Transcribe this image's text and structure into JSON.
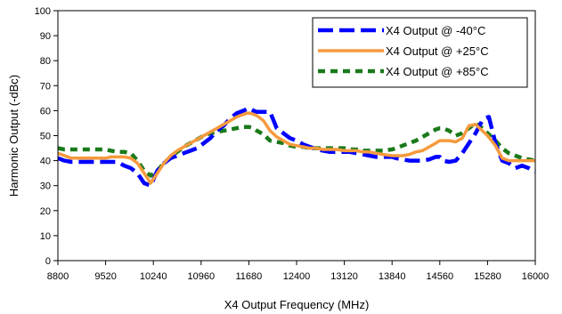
{
  "chart_data": {
    "type": "line",
    "xlabel": "X4 Output Frequency (MHz)",
    "ylabel": "Harmonic Output (-dBc)",
    "xlim": [
      8800,
      16000
    ],
    "ylim": [
      0,
      100
    ],
    "xticks": [
      8800,
      9520,
      10240,
      10960,
      11680,
      12400,
      13120,
      13840,
      14560,
      15280,
      16000
    ],
    "yticks": [
      0,
      10,
      20,
      30,
      40,
      50,
      60,
      70,
      80,
      90,
      100
    ],
    "grid": false,
    "legend_position": "top-right",
    "series": [
      {
        "name": "X4 Output @ -40°C",
        "color": "#0000ff",
        "dash": "long-dash",
        "x": [
          8800,
          8900,
          9000,
          9100,
          9200,
          9300,
          9400,
          9520,
          9600,
          9700,
          9800,
          9900,
          10000,
          10100,
          10200,
          10300,
          10400,
          10500,
          10600,
          10700,
          10800,
          10900,
          11000,
          11100,
          11200,
          11300,
          11400,
          11500,
          11600,
          11680,
          11750,
          11800,
          11900,
          12000,
          12100,
          12200,
          12300,
          12400,
          12500,
          12600,
          12700,
          12800,
          12900,
          13000,
          13120,
          13200,
          13300,
          13400,
          13500,
          13600,
          13700,
          13840,
          13900,
          14000,
          14100,
          14200,
          14300,
          14400,
          14500,
          14560,
          14600,
          14700,
          14800,
          14900,
          15000,
          15100,
          15200,
          15250,
          15300,
          15400,
          15500,
          15600,
          15700,
          15800,
          15900,
          16000
        ],
        "values": [
          41,
          40,
          39.5,
          39.5,
          39.5,
          39.5,
          39.5,
          39.5,
          39.5,
          39.5,
          38,
          37,
          35,
          31,
          30,
          36,
          39,
          41,
          42,
          43,
          44,
          45,
          47,
          49,
          52,
          54,
          57,
          59,
          60,
          61,
          60,
          59.5,
          59.5,
          59.5,
          53,
          51,
          49,
          48,
          46.5,
          45.5,
          44.5,
          44,
          43.5,
          43.5,
          43.5,
          43.5,
          43,
          42.5,
          42,
          41.5,
          41.5,
          41.5,
          41,
          40.5,
          40,
          40,
          40,
          40.5,
          41.5,
          41.5,
          40,
          39.5,
          40,
          43,
          47,
          51,
          56,
          57,
          57.5,
          47,
          40,
          39,
          37,
          38,
          37,
          35.5
        ]
      },
      {
        "name": "X4 Output @ +25°C",
        "color": "#f59a3e",
        "dash": "solid",
        "x": [
          8800,
          8900,
          9000,
          9100,
          9200,
          9300,
          9400,
          9520,
          9600,
          9700,
          9800,
          9900,
          10000,
          10100,
          10200,
          10300,
          10400,
          10500,
          10600,
          10700,
          10800,
          10900,
          11000,
          11100,
          11200,
          11300,
          11400,
          11500,
          11600,
          11650,
          11700,
          11800,
          11900,
          12000,
          12100,
          12200,
          12300,
          12400,
          12500,
          12600,
          12700,
          12800,
          12900,
          13000,
          13120,
          13200,
          13300,
          13400,
          13500,
          13600,
          13700,
          13840,
          13900,
          14000,
          14100,
          14200,
          14300,
          14400,
          14500,
          14560,
          14600,
          14700,
          14800,
          14900,
          15000,
          15100,
          15200,
          15280,
          15400,
          15500,
          15600,
          15700,
          15800,
          15900,
          16000
        ],
        "values": [
          43,
          42,
          41,
          41,
          41,
          41,
          41,
          41,
          41.5,
          41.5,
          41.5,
          41,
          39,
          35,
          31,
          35,
          39,
          42,
          44,
          45.5,
          47,
          48.5,
          50,
          51.5,
          53,
          54.5,
          56,
          57.5,
          58.5,
          59,
          59,
          58,
          56,
          52,
          49.5,
          48,
          46.5,
          46,
          45.5,
          45,
          45,
          44.5,
          44.5,
          44.5,
          44,
          44,
          44,
          43.5,
          43.5,
          43,
          42.5,
          42,
          42,
          42,
          42.5,
          43.5,
          44,
          45.5,
          47,
          48,
          48,
          48,
          47.5,
          49,
          54,
          54.5,
          52,
          50,
          46,
          41,
          40,
          40,
          40,
          40,
          40
        ]
      },
      {
        "name": "X4 Output @ +85°C",
        "color": "#1a7a1a",
        "dash": "dotted",
        "x": [
          8800,
          8900,
          9000,
          9100,
          9200,
          9300,
          9400,
          9520,
          9600,
          9700,
          9800,
          9900,
          10000,
          10100,
          10200,
          10300,
          10400,
          10500,
          10600,
          10700,
          10800,
          10900,
          11000,
          11100,
          11200,
          11300,
          11400,
          11500,
          11600,
          11680,
          11750,
          11800,
          11900,
          12000,
          12100,
          12200,
          12300,
          12400,
          12500,
          12600,
          12700,
          12800,
          12900,
          13000,
          13120,
          13200,
          13300,
          13400,
          13500,
          13600,
          13700,
          13840,
          13900,
          14000,
          14100,
          14200,
          14300,
          14400,
          14500,
          14560,
          14600,
          14700,
          14800,
          14900,
          15000,
          15100,
          15200,
          15280,
          15400,
          15500,
          15600,
          15700,
          15800,
          15900,
          16000
        ],
        "values": [
          45,
          44.5,
          44.5,
          44.5,
          44.5,
          44.5,
          44.5,
          44.5,
          44,
          43.5,
          43.5,
          43,
          40,
          36,
          34,
          36,
          39,
          41.5,
          43.5,
          45.5,
          47,
          48.5,
          50,
          51,
          51.5,
          52,
          52.5,
          53,
          53.5,
          53.5,
          53,
          52,
          50.5,
          48,
          47.5,
          47,
          46,
          45.5,
          45.5,
          45,
          45,
          45,
          45,
          45,
          45,
          44.5,
          44.5,
          44,
          44,
          44,
          44,
          44.5,
          45,
          46,
          47,
          48,
          49.5,
          51,
          52.5,
          53,
          53,
          52,
          50,
          51,
          53,
          55,
          53,
          51,
          48,
          45,
          43,
          42,
          41,
          40.5,
          40
        ]
      }
    ]
  }
}
